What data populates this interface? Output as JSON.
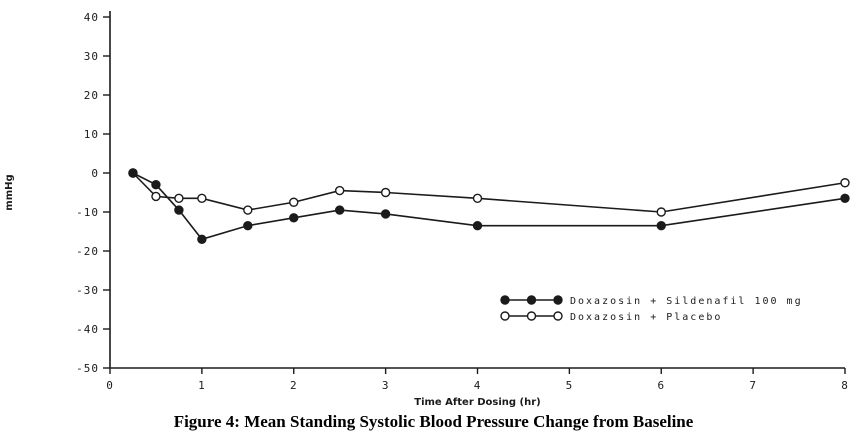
{
  "figure": {
    "caption": "Figure 4: Mean Standing Systolic Blood Pressure Change from Baseline"
  },
  "chart_data": {
    "type": "line",
    "title": "",
    "xlabel": "Time After Dosing (hr)",
    "ylabel": "mmHg",
    "xlim": [
      0,
      8
    ],
    "ylim": [
      -50,
      40
    ],
    "xticks": [
      0,
      1,
      2,
      3,
      4,
      5,
      6,
      7,
      8
    ],
    "yticks": [
      40,
      30,
      20,
      10,
      0,
      -10,
      -20,
      -30,
      -40,
      -50
    ],
    "grid": false,
    "legend_position": "inside-lower-right",
    "line_color": "#1b1b1b",
    "x": [
      0.25,
      0.5,
      0.75,
      1,
      1.5,
      2,
      2.5,
      3,
      4,
      6,
      8
    ],
    "series": [
      {
        "name": "Doxazosin + Sildenafil 100 mg",
        "marker": "filled",
        "values": [
          0,
          -3,
          -9.5,
          -17,
          -13.5,
          -11.5,
          -9.5,
          -10.5,
          -13.5,
          -13.5,
          -6.5
        ]
      },
      {
        "name": "Doxazosin + Placebo",
        "marker": "open",
        "values": [
          0,
          -6,
          -6.5,
          -6.5,
          -9.5,
          -7.5,
          -4.5,
          -5,
          -6.5,
          -10,
          -2.5
        ]
      }
    ]
  }
}
